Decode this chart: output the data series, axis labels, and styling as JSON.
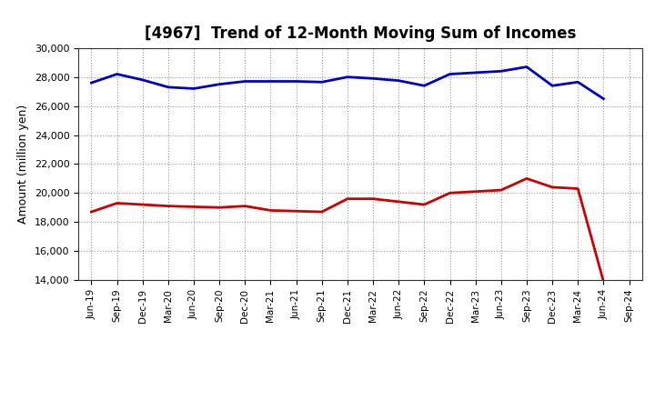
{
  "title": "[4967]  Trend of 12-Month Moving Sum of Incomes",
  "ylabel": "Amount (million yen)",
  "ylim": [
    14000,
    30000
  ],
  "yticks": [
    14000,
    16000,
    18000,
    20000,
    22000,
    24000,
    26000,
    28000,
    30000
  ],
  "x_labels": [
    "Jun-19",
    "Sep-19",
    "Dec-19",
    "Mar-20",
    "Jun-20",
    "Sep-20",
    "Dec-20",
    "Mar-21",
    "Jun-21",
    "Sep-21",
    "Dec-21",
    "Mar-22",
    "Jun-22",
    "Sep-22",
    "Dec-22",
    "Mar-23",
    "Jun-23",
    "Sep-23",
    "Dec-23",
    "Mar-24",
    "Jun-24",
    "Sep-24"
  ],
  "ordinary_income": [
    27600,
    28200,
    27800,
    27300,
    27200,
    27500,
    27700,
    27700,
    27700,
    27650,
    28000,
    27900,
    27750,
    27400,
    28200,
    28300,
    28400,
    28700,
    27400,
    27650,
    26500,
    null
  ],
  "net_income": [
    18700,
    19300,
    19200,
    19100,
    19050,
    19000,
    19100,
    18800,
    18750,
    18700,
    19600,
    19600,
    19400,
    19200,
    20000,
    20100,
    20200,
    21000,
    20400,
    20300,
    13900,
    null
  ],
  "ordinary_color": "#0000cc",
  "net_color": "#cc0000",
  "line_width": 2.0,
  "background_color": "#ffffff",
  "grid_color": "#999999"
}
